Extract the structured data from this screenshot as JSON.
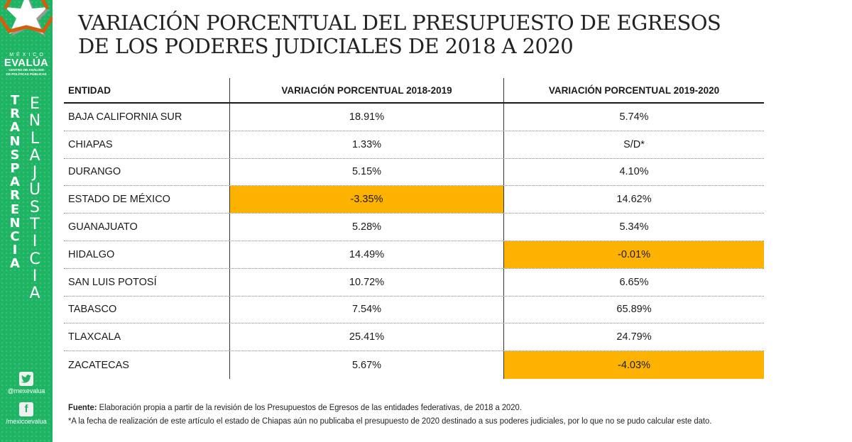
{
  "sidebar": {
    "logo": {
      "icon": "star-logo-icon",
      "line1": "MÉXICO",
      "line2": "EVALÚA",
      "line3": "CENTRO DE ANÁLISIS",
      "line4": "DE POLÍTICAS PÚBLICAS"
    },
    "vertical_left": [
      "T",
      "R",
      "A",
      "N",
      "S",
      "P",
      "A",
      "R",
      "E",
      "N",
      "C",
      "I",
      "A"
    ],
    "vertical_right": [
      "E",
      "N",
      "L",
      "A",
      "J",
      "U",
      "S",
      "T",
      "I",
      "C",
      "I",
      "A"
    ],
    "social": {
      "twitter": {
        "icon": "twitter-icon",
        "glyph": "🐦",
        "handle": "@mexevalua"
      },
      "facebook": {
        "icon": "facebook-icon",
        "glyph": "f",
        "handle": "/mexicoevalua"
      }
    }
  },
  "title": {
    "line1": "VARIACIÓN PORCENTUAL DEL PRESUPUESTO DE EGRESOS",
    "line2": "DE LOS PODERES JUDICIALES DE 2018 A 2020"
  },
  "table": {
    "headers": [
      "ENTIDAD",
      "VARIACIÓN PORCENTUAL 2018-2019",
      "VARIACIÓN PORCENTUAL 2019-2020"
    ],
    "highlight_color": "#fdb200",
    "rows": [
      {
        "entidad": "BAJA CALIFORNIA SUR",
        "v2018_2019": "18.91%",
        "v2019_2020": "5.74%",
        "hl1": false,
        "hl2": false
      },
      {
        "entidad": "CHIAPAS",
        "v2018_2019": "1.33%",
        "v2019_2020": "S/D*",
        "hl1": false,
        "hl2": false
      },
      {
        "entidad": "DURANGO",
        "v2018_2019": "5.15%",
        "v2019_2020": "4.10%",
        "hl1": false,
        "hl2": false
      },
      {
        "entidad": "ESTADO DE MÉXICO",
        "v2018_2019": "-3.35%",
        "v2019_2020": "14.62%",
        "hl1": true,
        "hl2": false
      },
      {
        "entidad": "GUANAJUATO",
        "v2018_2019": "5.28%",
        "v2019_2020": "5.34%",
        "hl1": false,
        "hl2": false
      },
      {
        "entidad": "HIDALGO",
        "v2018_2019": "14.49%",
        "v2019_2020": "-0.01%",
        "hl1": false,
        "hl2": true
      },
      {
        "entidad": "SAN LUIS POTOSÍ",
        "v2018_2019": "10.72%",
        "v2019_2020": "6.65%",
        "hl1": false,
        "hl2": false
      },
      {
        "entidad": "TABASCO",
        "v2018_2019": "7.54%",
        "v2019_2020": "65.89%",
        "hl1": false,
        "hl2": false
      },
      {
        "entidad": "TLAXCALA",
        "v2018_2019": "25.41%",
        "v2019_2020": "24.79%",
        "hl1": false,
        "hl2": false
      },
      {
        "entidad": "ZACATECAS",
        "v2018_2019": "5.67%",
        "v2019_2020": "-4.03%",
        "hl1": false,
        "hl2": true
      }
    ]
  },
  "footer": {
    "source_label": "Fuente:",
    "source_text": " Elaboración propia a partir de la revisión de los Presupuestos de Egresos de las entidades federativas, de 2018 a 2020.",
    "note": "*A la fecha de realización de este artículo el estado de Chiapas aún no publicaba el presupuesto de 2020 destinado a sus poderes judiciales, por lo que no se pudo calcular este dato."
  }
}
